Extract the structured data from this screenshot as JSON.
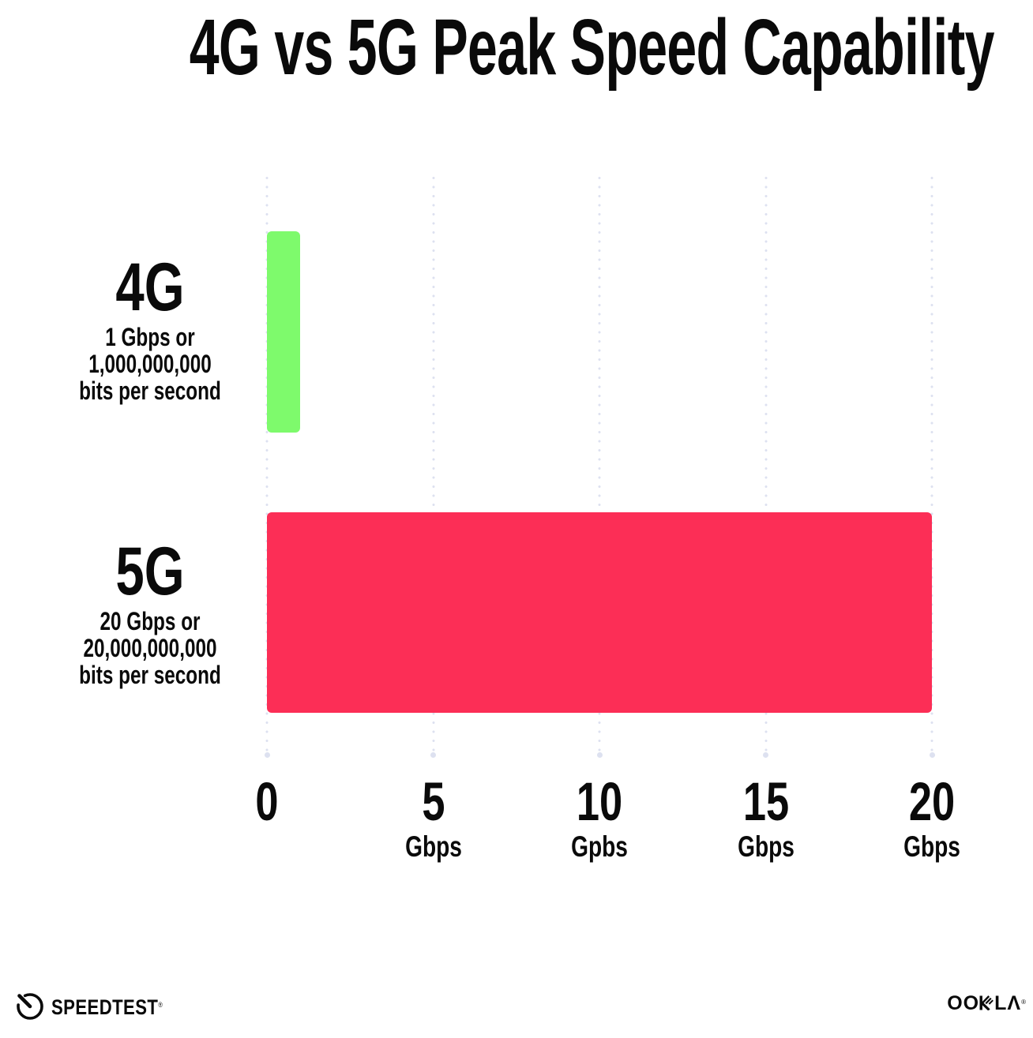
{
  "title": "4G vs 5G Peak Speed Capability",
  "chart_data": {
    "type": "bar",
    "orientation": "horizontal",
    "title": "4G vs 5G Peak Speed Capability",
    "categories": [
      "4G",
      "5G"
    ],
    "values": [
      1,
      20
    ],
    "value_unit": "Gbps",
    "xlim": [
      0,
      20
    ],
    "x_tick_step": 5,
    "grid": "vertical dotted gridlines at 0, 5, 10, 15, 20",
    "legend": "none",
    "colors": [
      "#7EFA6C",
      "#FC2E56"
    ],
    "row_labels": [
      {
        "name": "4G",
        "lines": [
          "1 Gbps or",
          "1,000,000,000",
          "bits per second"
        ]
      },
      {
        "name": "5G",
        "lines": [
          "20 Gbps or",
          "20,000,000,000",
          "bits per second"
        ]
      }
    ],
    "x_ticks": [
      {
        "value": "0",
        "unit": ""
      },
      {
        "value": "5",
        "unit": "Gbps"
      },
      {
        "value": "10",
        "unit": "Gpbs"
      },
      {
        "value": "15",
        "unit": "Gbps"
      },
      {
        "value": "20",
        "unit": "Gbps"
      }
    ]
  },
  "footer": {
    "speedtest": {
      "label": "SPEEDTEST",
      "mark": "®"
    },
    "ookla": {
      "label": "OOKLA",
      "display_left": "OO",
      "display_right": "LΛ",
      "mark": "®"
    }
  },
  "colors": {
    "background": "#ffffff",
    "text": "#0a0a0a",
    "gridline": "#dde1f0",
    "bar_4g": "#7EFA6C",
    "bar_5g": "#FC2E56"
  }
}
